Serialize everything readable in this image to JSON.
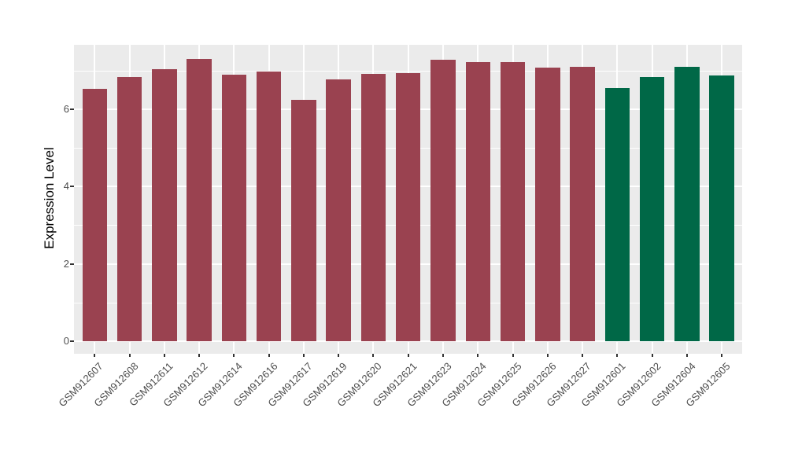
{
  "figure": {
    "background": "#FFFFFF"
  },
  "chart_data": {
    "type": "bar",
    "title": "",
    "xlabel": "",
    "ylabel": "Expression Level",
    "categories": [
      "GSM912607",
      "GSM912608",
      "GSM912611",
      "GSM912612",
      "GSM912614",
      "GSM912616",
      "GSM912617",
      "GSM912619",
      "GSM912620",
      "GSM912621",
      "GSM912623",
      "GSM912624",
      "GSM912625",
      "GSM912626",
      "GSM912627",
      "GSM912601",
      "GSM912602",
      "GSM912604",
      "GSM912605"
    ],
    "values": [
      6.52,
      6.83,
      7.04,
      7.3,
      6.9,
      6.97,
      6.25,
      6.77,
      6.91,
      6.94,
      7.27,
      7.21,
      7.21,
      7.07,
      7.09,
      6.55,
      6.82,
      7.1,
      6.88
    ],
    "bar_groups": [
      "maroon",
      "maroon",
      "maroon",
      "maroon",
      "maroon",
      "maroon",
      "maroon",
      "maroon",
      "maroon",
      "maroon",
      "maroon",
      "maroon",
      "maroon",
      "maroon",
      "maroon",
      "green",
      "green",
      "green",
      "green"
    ],
    "group_colors": {
      "maroon": "#9A4250",
      "green": "#006847"
    },
    "ylim": [
      0,
      7.66
    ],
    "yticks": [
      0,
      2,
      4,
      6
    ],
    "minor_gridlines": [
      1,
      3,
      5,
      7
    ],
    "grid": true,
    "legend": "none",
    "x_tick_rotation_deg": 45,
    "panel_background": "#EBEBEB",
    "gridline_color": "#FFFFFF",
    "tick_label_color": "#4D4D4D",
    "axis_title_color": "#000000"
  }
}
